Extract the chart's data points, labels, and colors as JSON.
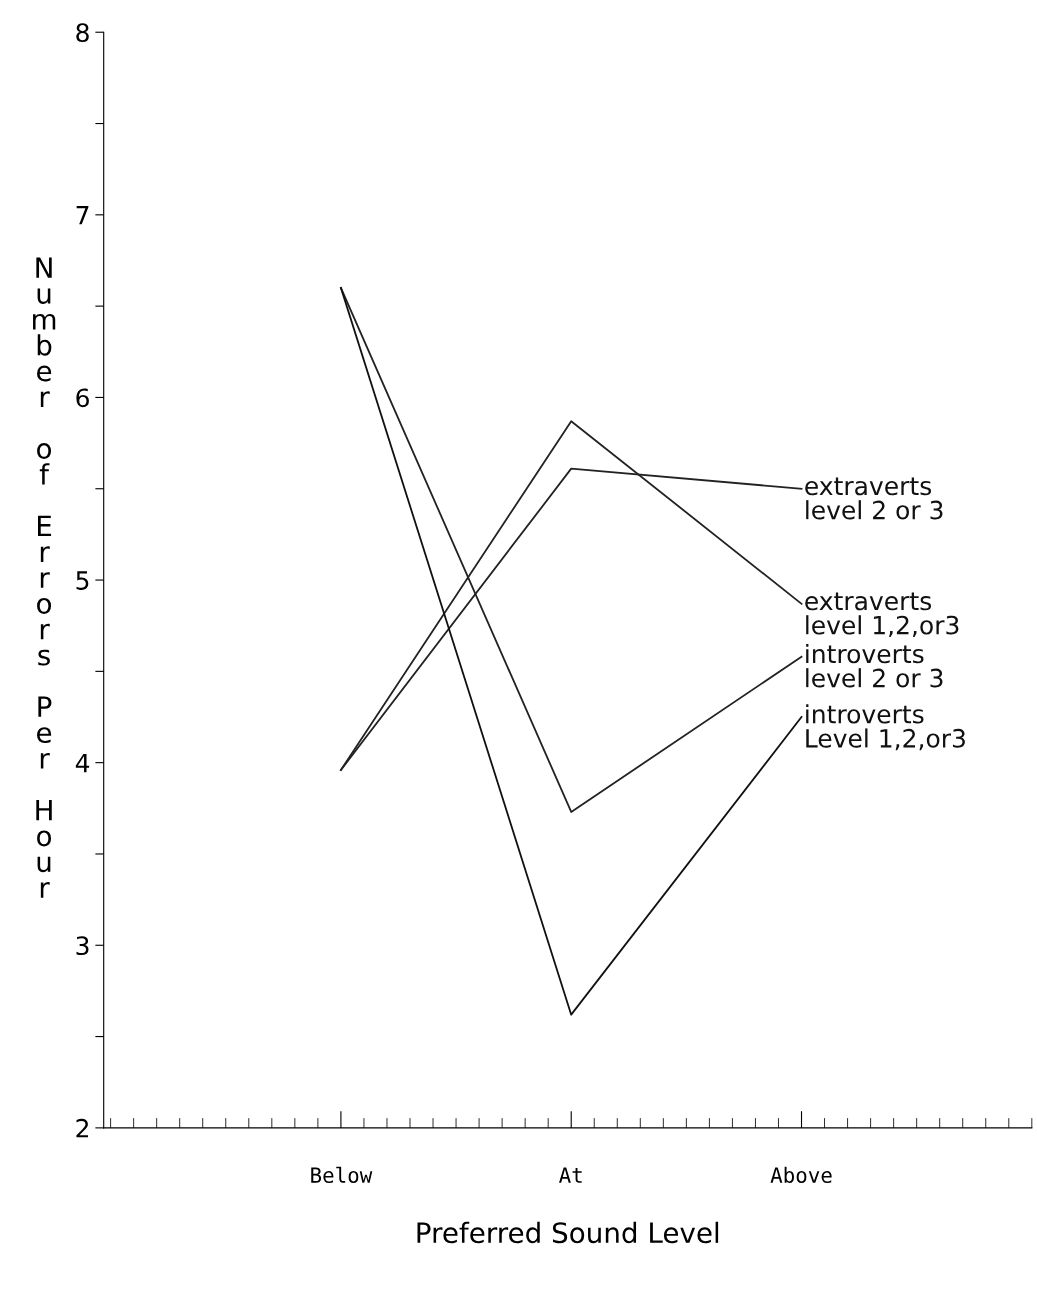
{
  "chart_data": {
    "type": "line",
    "xlabel": "Preferred Sound Level",
    "ylabel": "Number of Errors Per Hour",
    "categories": [
      "Below",
      "At",
      "Above"
    ],
    "series": [
      {
        "name": "extraverts\nlevel 2 or 3",
        "color": "#222222",
        "values": [
          3.96,
          5.61,
          5.5
        ]
      },
      {
        "name": "extraverts\nlevel 1,2,or3",
        "color": "#222222",
        "values": [
          3.96,
          5.87,
          4.87
        ]
      },
      {
        "name": "introverts\nlevel 2 or 3",
        "color": "#222222",
        "values": [
          6.6,
          3.73,
          4.58
        ]
      },
      {
        "name": "introverts\nLevel 1,2,or3",
        "color": "#111111",
        "values": [
          6.6,
          2.62,
          4.25
        ]
      }
    ],
    "ylim": [
      2,
      8
    ],
    "yticks": [
      2,
      {
        "value": 2.5,
        "label": null
      },
      3,
      {
        "value": 3.5,
        "label": null
      },
      4,
      {
        "value": 4.5,
        "label": null
      },
      5,
      {
        "value": 5.5,
        "label": null
      },
      6,
      {
        "value": 6.5,
        "label": null
      },
      7,
      {
        "value": 7.5,
        "label": null
      },
      8
    ],
    "grid": false,
    "legend": false,
    "marker": "none",
    "line_style": "solid"
  }
}
